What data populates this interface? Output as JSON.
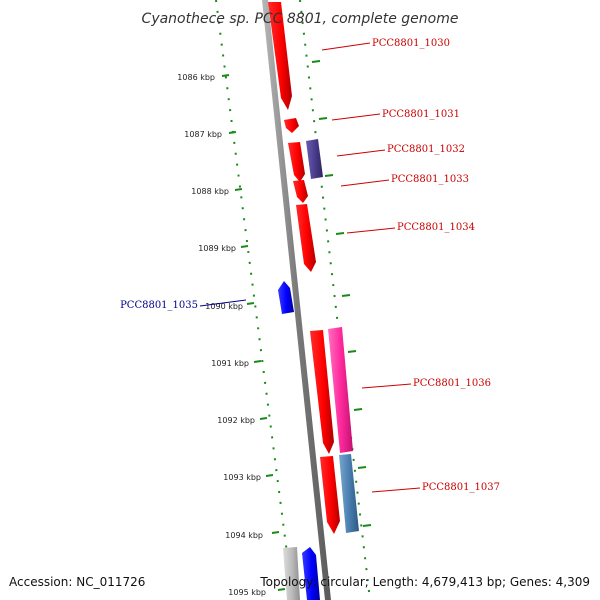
{
  "title": "Cyanothece sp. PCC 8801, complete genome",
  "footer": {
    "accession": "Accession: NC_011726",
    "topology": "Topology: circular; Length: 4,679,413 bp; Genes: 4,309"
  },
  "ticks": [
    "1086 kbp",
    "1087 kbp",
    "1088 kbp",
    "1089 kbp",
    "1090 kbp",
    "1091 kbp",
    "1092 kbp",
    "1093 kbp",
    "1094 kbp",
    "1095 kbp"
  ],
  "genes": [
    {
      "id": "gene-pcc8801-1030",
      "label": "PCC8801_1030",
      "strand": "forward",
      "color": "#ff0000"
    },
    {
      "id": "gene-pcc8801-1031",
      "label": "PCC8801_1031",
      "strand": "forward",
      "color": "#ff0000"
    },
    {
      "id": "gene-pcc8801-1032",
      "label": "PCC8801_1032",
      "strand": "forward",
      "color": "#ff0000"
    },
    {
      "id": "gene-pcc8801-1033",
      "label": "PCC8801_1033",
      "strand": "forward",
      "color": "#ff0000"
    },
    {
      "id": "gene-pcc8801-1034",
      "label": "PCC8801_1034",
      "strand": "forward",
      "color": "#ff0000"
    },
    {
      "id": "gene-pcc8801-1035",
      "label": "PCC8801_1035",
      "strand": "reverse",
      "color": "#0000ff"
    },
    {
      "id": "gene-pcc8801-1036",
      "label": "PCC8801_1036",
      "strand": "forward",
      "color": "#ff0000"
    },
    {
      "id": "gene-pcc8801-1037",
      "label": "PCC8801_1037",
      "strand": "forward",
      "color": "#ff0000"
    }
  ],
  "colors": {
    "backbone": "#888888",
    "tick": "#1a8a1a",
    "forward_label": "#cc0000",
    "reverse_label": "#00008b",
    "feature_purple": "#4b3d8f",
    "feature_pink": "#ff2a9d",
    "feature_steel": "#4a7fb0",
    "feature_gray": "#bdbdbd",
    "feature_blue": "#0000ff"
  }
}
